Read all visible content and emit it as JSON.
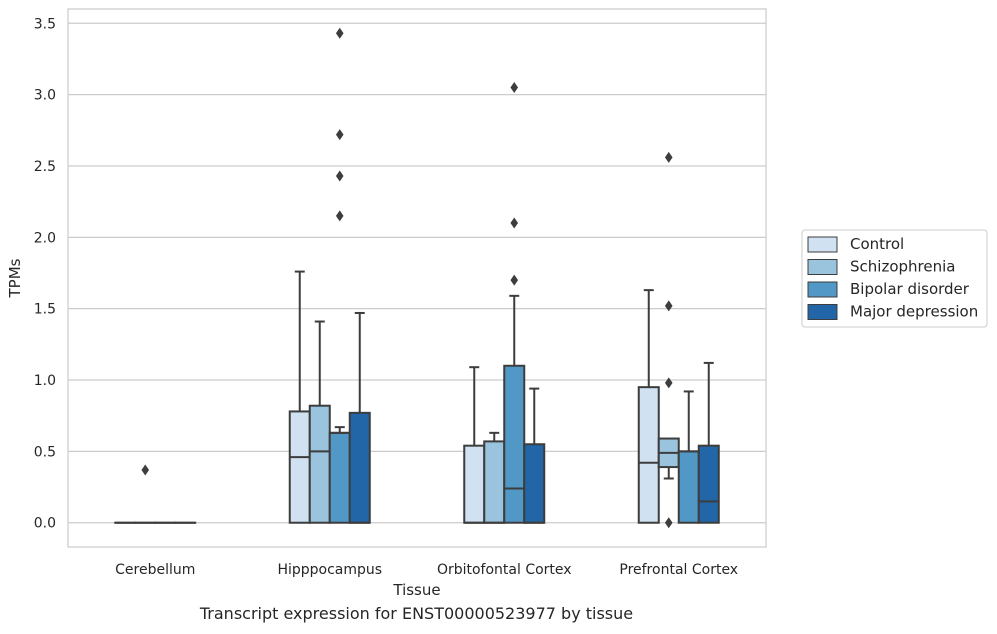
{
  "caption": "Transcript expression for ENST00000523977 by tissue",
  "chart_data": {
    "type": "box",
    "xlabel": "Tissue",
    "ylabel": "TPMs",
    "ylim": [
      -0.17,
      3.6
    ],
    "yticks": [
      0.0,
      0.5,
      1.0,
      1.5,
      2.0,
      2.5,
      3.0,
      3.5
    ],
    "ytick_labels": [
      "0.0",
      "0.5",
      "1.0",
      "1.5",
      "2.0",
      "2.5",
      "3.0",
      "3.5"
    ],
    "grid": "horizontal",
    "legend_position": "right",
    "categories": [
      "Cerebellum",
      "Hipppocampus",
      "Orbitofontal Cortex",
      "Prefrontal Cortex"
    ],
    "series": [
      {
        "name": "Control",
        "color": "#d0e1f2",
        "boxes": [
          {
            "q1": 0.0,
            "median": 0.0,
            "q3": 0.0,
            "whisker_low": 0.0,
            "whisker_high": 0.0,
            "outliers": []
          },
          {
            "q1": 0.0,
            "median": 0.46,
            "q3": 0.78,
            "whisker_low": 0.0,
            "whisker_high": 1.76,
            "outliers": []
          },
          {
            "q1": 0.0,
            "median": 0.0,
            "q3": 0.54,
            "whisker_low": 0.0,
            "whisker_high": 1.09,
            "outliers": []
          },
          {
            "q1": 0.0,
            "median": 0.42,
            "q3": 0.95,
            "whisker_low": 0.0,
            "whisker_high": 1.63,
            "outliers": []
          }
        ]
      },
      {
        "name": "Schizophrenia",
        "color": "#9ac3dd",
        "boxes": [
          {
            "q1": 0.0,
            "median": 0.0,
            "q3": 0.0,
            "whisker_low": 0.0,
            "whisker_high": 0.0,
            "outliers": [
              0.37
            ]
          },
          {
            "q1": 0.0,
            "median": 0.5,
            "q3": 0.82,
            "whisker_low": 0.0,
            "whisker_high": 1.41,
            "outliers": []
          },
          {
            "q1": 0.0,
            "median": 0.0,
            "q3": 0.57,
            "whisker_low": 0.0,
            "whisker_high": 0.63,
            "outliers": []
          },
          {
            "q1": 0.39,
            "median": 0.49,
            "q3": 0.59,
            "whisker_low": 0.31,
            "whisker_high": 0.59,
            "outliers": [
              0.0,
              0.98,
              1.52,
              2.56
            ]
          }
        ]
      },
      {
        "name": "Bipolar disorder",
        "color": "#5198c7",
        "boxes": [
          {
            "q1": 0.0,
            "median": 0.0,
            "q3": 0.0,
            "whisker_low": 0.0,
            "whisker_high": 0.0,
            "outliers": []
          },
          {
            "q1": 0.0,
            "median": 0.63,
            "q3": 0.63,
            "whisker_low": 0.0,
            "whisker_high": 0.67,
            "outliers": [
              2.15,
              2.43,
              2.72,
              3.43
            ]
          },
          {
            "q1": 0.0,
            "median": 0.24,
            "q3": 1.1,
            "whisker_low": 0.0,
            "whisker_high": 1.59,
            "outliers": [
              1.7,
              2.1,
              3.05
            ]
          },
          {
            "q1": 0.0,
            "median": 0.5,
            "q3": 0.5,
            "whisker_low": 0.0,
            "whisker_high": 0.92,
            "outliers": []
          }
        ]
      },
      {
        "name": "Major depression",
        "color": "#2266a7",
        "boxes": [
          {
            "q1": 0.0,
            "median": 0.0,
            "q3": 0.0,
            "whisker_low": 0.0,
            "whisker_high": 0.0,
            "outliers": []
          },
          {
            "q1": 0.0,
            "median": 0.0,
            "q3": 0.77,
            "whisker_low": 0.0,
            "whisker_high": 1.47,
            "outliers": []
          },
          {
            "q1": 0.0,
            "median": 0.0,
            "q3": 0.55,
            "whisker_low": 0.0,
            "whisker_high": 0.94,
            "outliers": []
          },
          {
            "q1": 0.0,
            "median": 0.15,
            "q3": 0.54,
            "whisker_low": 0.0,
            "whisker_high": 1.12,
            "outliers": []
          }
        ]
      }
    ]
  }
}
